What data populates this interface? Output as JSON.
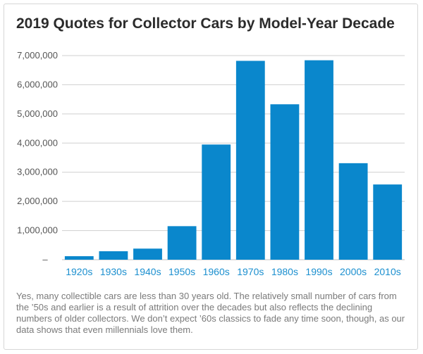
{
  "chart_data": {
    "type": "bar",
    "title": "2019 Quotes for Collector Cars by Model-Year Decade",
    "categories": [
      "1920s",
      "1930s",
      "1940s",
      "1950s",
      "1960s",
      "1970s",
      "1980s",
      "1990s",
      "2000s",
      "2010s"
    ],
    "values": [
      120000,
      290000,
      380000,
      1150000,
      3950000,
      6820000,
      5330000,
      6840000,
      3310000,
      2580000
    ],
    "yticks": [
      "–",
      "1,000,000",
      "2,000,000",
      "3,000,000",
      "4,000,000",
      "5,000,000",
      "6,000,000",
      "7,000,000"
    ],
    "ylim": [
      0,
      7000000
    ],
    "xlabel": "",
    "ylabel": "",
    "bar_color": "#0a87cc",
    "caption": "Yes, many collectible cars are less than 30 years old. The relatively small number of cars from the ’50s and earlier is a result of attrition over the decades but also reflects the declining numbers of older collectors. We don’t expect ’60s classics to fade any time soon, though, as our data shows that even millennials love them."
  }
}
